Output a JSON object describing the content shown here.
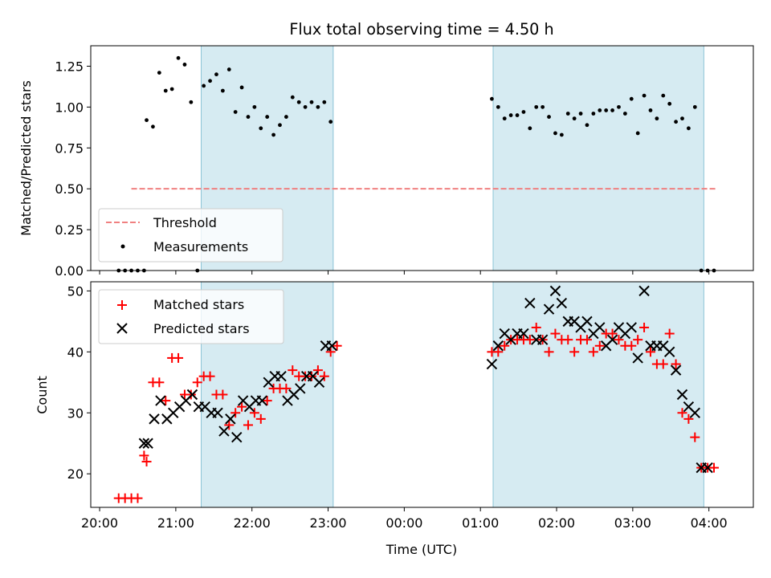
{
  "chart_data": [
    {
      "type": "scatter",
      "title": "Flux total observing time = 4.50 h",
      "ylabel": "Matched/Predicted stars",
      "xlabel": "",
      "x_unit": "Time (UTC)",
      "ylim": [
        0,
        1.375
      ],
      "yticks": [
        "0.00",
        "0.25",
        "0.50",
        "0.75",
        "1.00",
        "1.25"
      ],
      "legend_position": "lower-left",
      "threshold": {
        "name": "Threshold",
        "value": 0.5,
        "x_start": "20:25",
        "x_end": "04:05",
        "color": "#f08080"
      },
      "shaded_intervals": [
        [
          "21:20",
          "23:04"
        ],
        [
          "01:10",
          "03:56"
        ]
      ],
      "series": [
        {
          "name": "Measurements",
          "color": "#000000",
          "x": [
            "20:15",
            "20:20",
            "20:25",
            "20:30",
            "20:35",
            "20:37",
            "20:42",
            "20:47",
            "20:52",
            "20:57",
            "21:02",
            "21:07",
            "21:12",
            "21:17",
            "21:22",
            "21:27",
            "21:32",
            "21:37",
            "21:42",
            "21:47",
            "21:52",
            "21:57",
            "22:02",
            "22:07",
            "22:12",
            "22:17",
            "22:22",
            "22:27",
            "22:32",
            "22:37",
            "22:42",
            "22:47",
            "22:52",
            "22:57",
            "23:02",
            "01:09",
            "01:14",
            "01:19",
            "01:24",
            "01:29",
            "01:34",
            "01:39",
            "01:44",
            "01:49",
            "01:54",
            "01:59",
            "02:04",
            "02:09",
            "02:14",
            "02:19",
            "02:24",
            "02:29",
            "02:34",
            "02:39",
            "02:44",
            "02:49",
            "02:54",
            "02:59",
            "03:04",
            "03:09",
            "03:14",
            "03:19",
            "03:24",
            "03:29",
            "03:34",
            "03:39",
            "03:44",
            "03:49",
            "03:54",
            "03:59",
            "04:04"
          ],
          "y": [
            0,
            0,
            0,
            0,
            0,
            0.92,
            0.88,
            1.21,
            1.1,
            1.11,
            1.3,
            1.26,
            1.03,
            0,
            1.13,
            1.16,
            1.2,
            1.1,
            1.23,
            0.97,
            1.12,
            0.94,
            1.0,
            0.87,
            0.94,
            0.83,
            0.89,
            0.94,
            1.06,
            1.03,
            1.0,
            1.03,
            1.0,
            1.03,
            0.91,
            1.05,
            1.0,
            0.93,
            0.95,
            0.95,
            0.97,
            0.87,
            1.0,
            1.0,
            0.94,
            0.84,
            0.83,
            0.96,
            0.93,
            0.96,
            0.89,
            0.96,
            0.98,
            0.98,
            0.98,
            1.0,
            0.96,
            1.05,
            0.84,
            1.07,
            0.98,
            0.93,
            1.07,
            1.02,
            0.91,
            0.93,
            0.87,
            1.0,
            0,
            0,
            0
          ]
        }
      ]
    },
    {
      "type": "scatter",
      "title": "",
      "xlabel": "Time (UTC)",
      "ylabel": "Count",
      "ylim": [
        14.5,
        51.5
      ],
      "yticks": [
        "20",
        "30",
        "40",
        "50"
      ],
      "xticks": [
        "20:00",
        "21:00",
        "22:00",
        "23:00",
        "00:00",
        "01:00",
        "02:00",
        "03:00",
        "04:00"
      ],
      "legend_position": "upper-left",
      "shaded_intervals": [
        [
          "21:20",
          "23:04"
        ],
        [
          "01:10",
          "03:56"
        ]
      ],
      "series": [
        {
          "name": "Matched stars",
          "color": "#ff0000",
          "marker": "plus",
          "x": [
            "20:15",
            "20:20",
            "20:25",
            "20:30",
            "20:35",
            "20:37",
            "20:42",
            "20:47",
            "20:52",
            "20:57",
            "21:02",
            "21:07",
            "21:12",
            "21:17",
            "21:22",
            "21:27",
            "21:32",
            "21:37",
            "21:42",
            "21:47",
            "21:52",
            "21:57",
            "22:02",
            "22:07",
            "22:12",
            "22:17",
            "22:22",
            "22:27",
            "22:32",
            "22:37",
            "22:42",
            "22:47",
            "22:52",
            "22:57",
            "23:02",
            "23:07",
            "01:09",
            "01:14",
            "01:19",
            "01:24",
            "01:29",
            "01:34",
            "01:39",
            "01:44",
            "01:49",
            "01:54",
            "01:59",
            "02:04",
            "02:09",
            "02:14",
            "02:19",
            "02:24",
            "02:29",
            "02:34",
            "02:39",
            "02:44",
            "02:49",
            "02:54",
            "02:59",
            "03:04",
            "03:09",
            "03:14",
            "03:19",
            "03:24",
            "03:29",
            "03:34",
            "03:39",
            "03:44",
            "03:49",
            "03:54",
            "03:59",
            "04:04"
          ],
          "y": [
            16,
            16,
            16,
            16,
            23,
            22,
            35,
            35,
            32,
            39,
            39,
            33,
            33,
            35,
            36,
            36,
            33,
            33,
            28,
            30,
            31,
            28,
            30,
            29,
            32,
            34,
            34,
            34,
            37,
            36,
            36,
            36,
            37,
            36,
            40,
            41,
            40,
            40,
            41,
            42,
            42,
            42,
            42,
            44,
            42,
            40,
            43,
            42,
            42,
            40,
            42,
            42,
            40,
            41,
            43,
            43,
            42,
            41,
            41,
            42,
            44,
            40,
            38,
            38,
            43,
            38,
            30,
            29,
            26,
            21,
            21,
            21
          ]
        },
        {
          "name": "Predicted stars",
          "color": "#000000",
          "marker": "x",
          "x": [
            "20:35",
            "20:38",
            "20:43",
            "20:48",
            "20:53",
            "20:58",
            "21:03",
            "21:08",
            "21:13",
            "21:18",
            "21:23",
            "21:28",
            "21:33",
            "21:38",
            "21:43",
            "21:48",
            "21:53",
            "21:58",
            "22:03",
            "22:08",
            "22:13",
            "22:18",
            "22:23",
            "22:28",
            "22:33",
            "22:38",
            "22:43",
            "22:48",
            "22:53",
            "22:58",
            "23:03",
            "01:09",
            "01:14",
            "01:19",
            "01:24",
            "01:29",
            "01:34",
            "01:39",
            "01:44",
            "01:49",
            "01:54",
            "01:59",
            "02:04",
            "02:09",
            "02:14",
            "02:19",
            "02:24",
            "02:29",
            "02:34",
            "02:39",
            "02:44",
            "02:49",
            "02:54",
            "02:59",
            "03:04",
            "03:09",
            "03:14",
            "03:19",
            "03:24",
            "03:29",
            "03:34",
            "03:39",
            "03:44",
            "03:49",
            "03:54",
            "03:59"
          ],
          "y": [
            25,
            25,
            29,
            32,
            29,
            30,
            31,
            32,
            33,
            31,
            31,
            30,
            30,
            27,
            29,
            26,
            32,
            31,
            32,
            32,
            35,
            36,
            36,
            32,
            33,
            34,
            36,
            36,
            35,
            41,
            41,
            38,
            41,
            43,
            42,
            43,
            43,
            48,
            42,
            42,
            47,
            50,
            48,
            45,
            45,
            44,
            45,
            43,
            44,
            41,
            42,
            44,
            43,
            44,
            39,
            50,
            41,
            41,
            41,
            40,
            37,
            33,
            31,
            30,
            21,
            21
          ]
        }
      ]
    }
  ]
}
